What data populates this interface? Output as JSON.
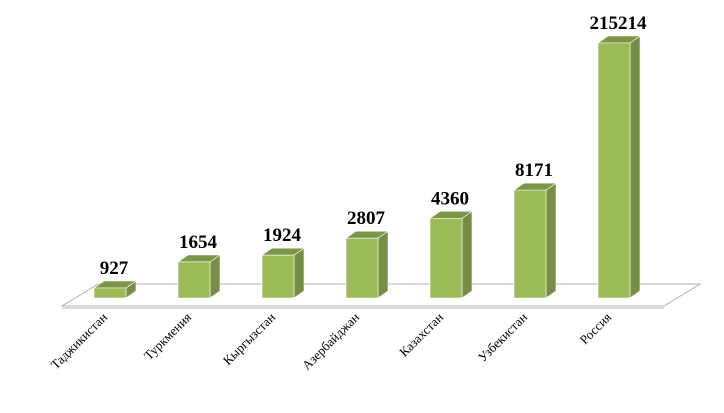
{
  "chart_data": {
    "type": "bar",
    "categories": [
      "Таджикистан",
      "Туркмения",
      "Кыргызстан",
      "Азербайджан",
      "Казахстан",
      "Узбекистан",
      "Россия"
    ],
    "values": [
      927,
      1654,
      1924,
      2807,
      4360,
      8171,
      215214
    ],
    "color": "#9bbb59",
    "log_scale": true,
    "grid": false
  }
}
